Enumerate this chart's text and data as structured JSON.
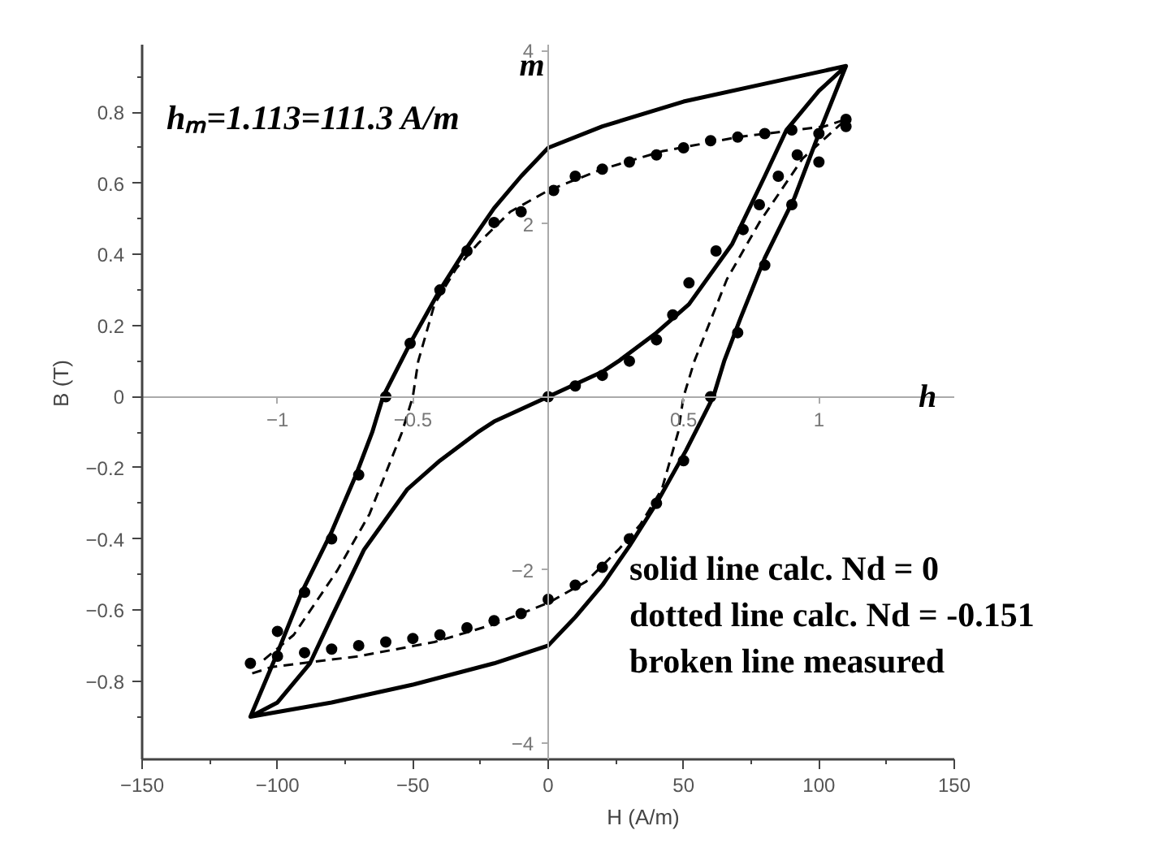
{
  "chart_data": {
    "type": "line",
    "xlabel": "H (A/m)",
    "ylabel": "B (T)",
    "x2label": "h",
    "y2label": "m",
    "annotations": [
      "hₘ=1.113=111.3 A/m",
      "solid line calc. Nd = 0",
      "dotted line calc. Nd = -0.151",
      "broken line measured"
    ],
    "xlim": [
      -150,
      150
    ],
    "xticks": [
      -150,
      {
        "value": -125,
        "label": null
      },
      -100,
      {
        "value": -75,
        "label": null
      },
      -50,
      {
        "value": -25,
        "label": null
      },
      0,
      {
        "value": 25,
        "label": null
      },
      50,
      {
        "value": 75,
        "label": null
      },
      100,
      {
        "value": 125,
        "label": null
      },
      150
    ],
    "ylim": [
      -1.02,
      0.99
    ],
    "yticks": [
      -0.8,
      -0.6,
      -0.4,
      -0.2,
      0.0,
      0.2,
      0.4,
      0.6,
      0.8,
      {
        "value": -0.9,
        "label": null
      },
      {
        "value": -0.7,
        "label": null
      },
      {
        "value": -0.5,
        "label": null
      },
      {
        "value": -0.3,
        "label": null
      },
      {
        "value": -0.1,
        "label": null
      },
      {
        "value": 0.1,
        "label": null
      },
      {
        "value": 0.3,
        "label": null
      },
      {
        "value": 0.5,
        "label": null
      },
      {
        "value": 0.7,
        "label": null
      },
      {
        "value": 0.9,
        "label": null
      }
    ],
    "x2lim": [
      -1.5,
      1.5
    ],
    "x2ticks": [
      -1,
      -0.5,
      0.5,
      1
    ],
    "y2lim": [
      -4.19,
      4.07
    ],
    "y2ticks": [
      -4,
      -2,
      2,
      4
    ],
    "series": [
      {
        "color": "#000000",
        "line_style": "solid",
        "marker": "none",
        "x": [
          -110,
          -100,
          -91,
          -80,
          -71,
          -65,
          -61,
          -51,
          -40,
          -30,
          -20,
          -10,
          0,
          20,
          50,
          80,
          110,
          100,
          91,
          80,
          71,
          65,
          61,
          51,
          40,
          30,
          20,
          10,
          0,
          -20,
          -50,
          -80,
          -110,
          -100,
          -88,
          -80,
          -68,
          -52,
          -40,
          -26,
          -20,
          0,
          20,
          26,
          40,
          52,
          68,
          80,
          88,
          100,
          110
        ],
        "values": [
          -0.9,
          -0.72,
          -0.55,
          -0.38,
          -0.22,
          -0.1,
          0.0,
          0.15,
          0.3,
          0.42,
          0.53,
          0.62,
          0.7,
          0.76,
          0.83,
          0.88,
          0.93,
          0.74,
          0.56,
          0.39,
          0.22,
          0.1,
          0.0,
          -0.15,
          -0.3,
          -0.42,
          -0.53,
          -0.62,
          -0.7,
          -0.75,
          -0.81,
          -0.86,
          -0.9,
          -0.86,
          -0.75,
          -0.62,
          -0.43,
          -0.26,
          -0.18,
          -0.1,
          -0.07,
          0.0,
          0.07,
          0.1,
          0.18,
          0.26,
          0.43,
          0.62,
          0.75,
          0.86,
          0.93
        ]
      },
      {
        "type": "scatter",
        "color": "#000000",
        "marker": "circle",
        "x": [
          -110,
          -100,
          -90,
          -80,
          -70,
          -60,
          -51,
          -40,
          -30,
          -20,
          -10,
          2,
          10,
          20,
          30,
          40,
          50,
          60,
          70,
          80,
          90,
          110,
          100,
          90,
          80,
          70,
          60,
          50,
          40,
          30,
          20,
          10,
          0,
          -10,
          -20,
          -30,
          -40,
          -50,
          -60,
          -70,
          -80,
          -90,
          -100
        ],
        "values": [
          -0.75,
          -0.66,
          -0.55,
          -0.4,
          -0.22,
          0.0,
          0.15,
          0.3,
          0.41,
          0.49,
          0.52,
          0.58,
          0.62,
          0.64,
          0.66,
          0.68,
          0.7,
          0.72,
          0.73,
          0.74,
          0.75,
          0.76,
          0.66,
          0.54,
          0.37,
          0.18,
          0.0,
          -0.18,
          -0.3,
          -0.4,
          -0.48,
          -0.53,
          -0.57,
          -0.61,
          -0.63,
          -0.65,
          -0.67,
          -0.68,
          -0.69,
          -0.7,
          -0.71,
          -0.72,
          -0.73
        ]
      },
      {
        "type": "scatter",
        "color": "#000000",
        "marker": "circle",
        "x": [
          0,
          10,
          20,
          30,
          40,
          46,
          52,
          62,
          72,
          78,
          85,
          92,
          100,
          110
        ],
        "values": [
          0.0,
          0.03,
          0.06,
          0.1,
          0.16,
          0.23,
          0.32,
          0.41,
          0.47,
          0.54,
          0.62,
          0.68,
          0.74,
          0.78
        ]
      },
      {
        "color": "#000000",
        "line_style": "dashed",
        "marker": "none",
        "x": [
          -105,
          -94,
          -78,
          -66,
          -54,
          -50,
          -48,
          -42,
          -34,
          -26,
          -14,
          0,
          20,
          42,
          70,
          102,
          110,
          94,
          78,
          66,
          54,
          50,
          48,
          42,
          34,
          26,
          14,
          0,
          -20,
          -42,
          -70,
          -102,
          -110
        ],
        "values": [
          -0.74,
          -0.67,
          -0.49,
          -0.33,
          -0.1,
          0.0,
          0.1,
          0.26,
          0.36,
          0.43,
          0.52,
          0.58,
          0.64,
          0.69,
          0.73,
          0.76,
          0.78,
          0.67,
          0.49,
          0.33,
          0.1,
          0.0,
          -0.1,
          -0.26,
          -0.36,
          -0.43,
          -0.52,
          -0.58,
          -0.64,
          -0.69,
          -0.73,
          -0.76,
          -0.78
        ]
      }
    ]
  }
}
